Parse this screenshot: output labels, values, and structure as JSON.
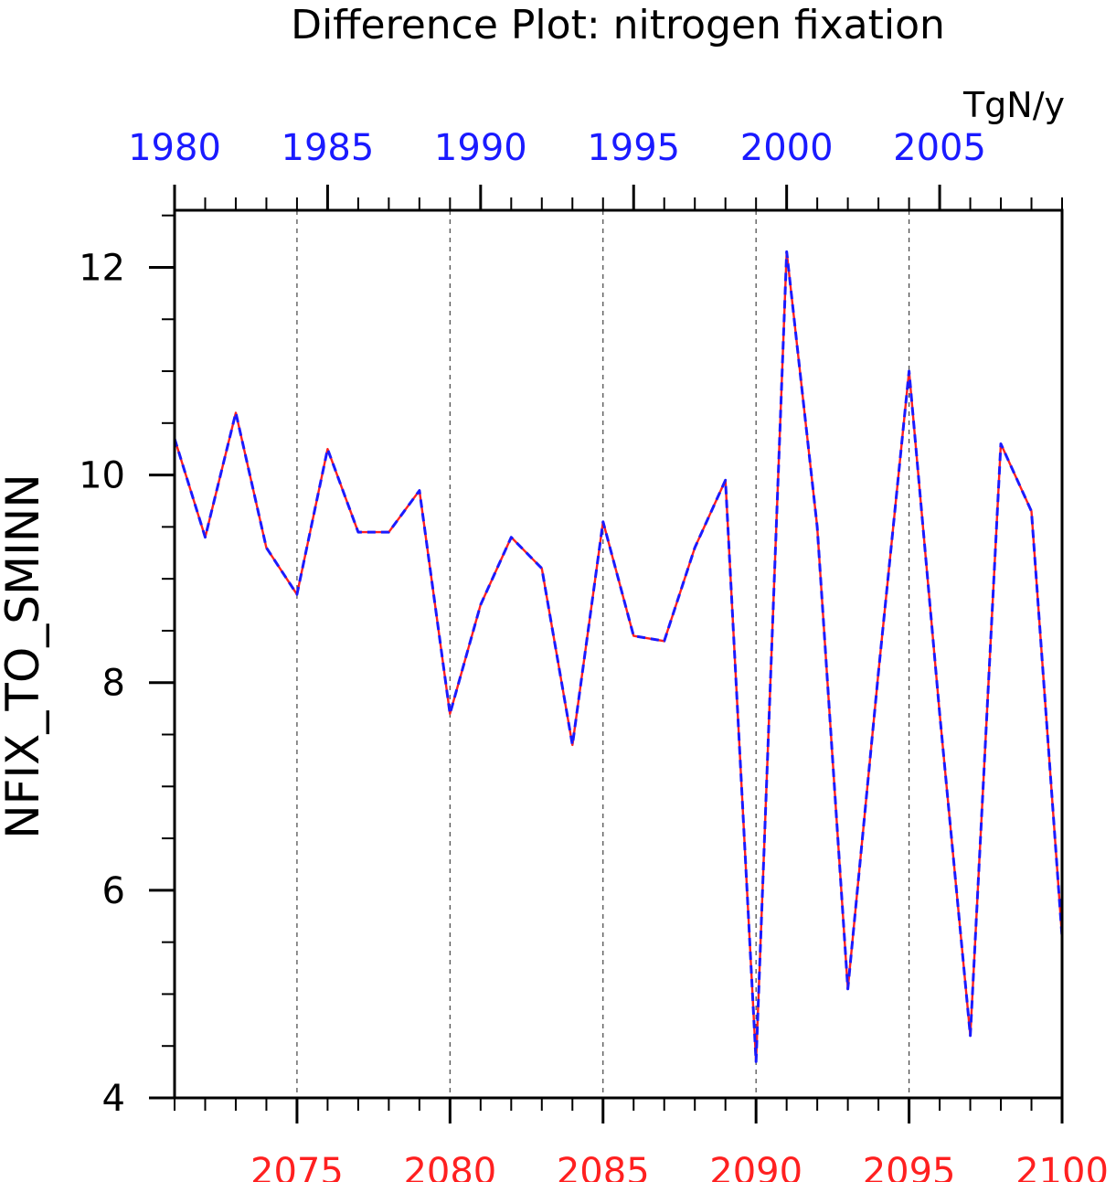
{
  "chart_data": {
    "type": "line",
    "title": "Difference Plot: nitrogen fixation",
    "units": "TgN/y",
    "ylabel": "NFIX_TO_SMINN",
    "xlabel": "",
    "x_bottom": {
      "range": [
        2071,
        2100
      ],
      "tick_labels": [
        "2075",
        "2080",
        "2085",
        "2090",
        "2095",
        "2100"
      ],
      "color": "#ff2020"
    },
    "x_top": {
      "range": [
        1980,
        2009
      ],
      "tick_labels": [
        "1980",
        "1985",
        "1990",
        "1995",
        "2000",
        "2005"
      ],
      "color": "#1a1aff"
    },
    "ylim": [
      4,
      12.55
    ],
    "y_tick_labels": [
      "4",
      "6",
      "8",
      "10",
      "12"
    ],
    "grid": "vertical dashed",
    "x": [
      2071,
      2072,
      2073,
      2074,
      2075,
      2076,
      2077,
      2078,
      2079,
      2080,
      2081,
      2082,
      2083,
      2084,
      2085,
      2086,
      2087,
      2088,
      2089,
      2090,
      2091,
      2092,
      2093,
      2094,
      2095,
      2096,
      2097,
      2098,
      2099,
      2100
    ],
    "series": [
      {
        "color": "#ff2020",
        "style": "solid",
        "values": [
          10.35,
          9.4,
          10.6,
          9.3,
          8.85,
          10.25,
          9.45,
          9.45,
          9.85,
          7.7,
          8.75,
          9.4,
          9.1,
          7.4,
          9.55,
          8.45,
          8.4,
          9.3,
          9.95,
          4.35,
          12.15,
          9.5,
          5.05,
          8.1,
          11.0,
          7.7,
          4.6,
          10.3,
          9.65,
          5.55
        ]
      },
      {
        "color": "#1a1aff",
        "style": "dashed",
        "values": [
          10.35,
          9.4,
          10.6,
          9.3,
          8.85,
          10.25,
          9.45,
          9.45,
          9.85,
          7.7,
          8.75,
          9.4,
          9.1,
          7.4,
          9.55,
          8.45,
          8.4,
          9.3,
          9.95,
          4.35,
          12.15,
          9.5,
          5.05,
          8.1,
          11.0,
          7.7,
          4.6,
          10.3,
          9.65,
          5.55
        ]
      }
    ]
  }
}
